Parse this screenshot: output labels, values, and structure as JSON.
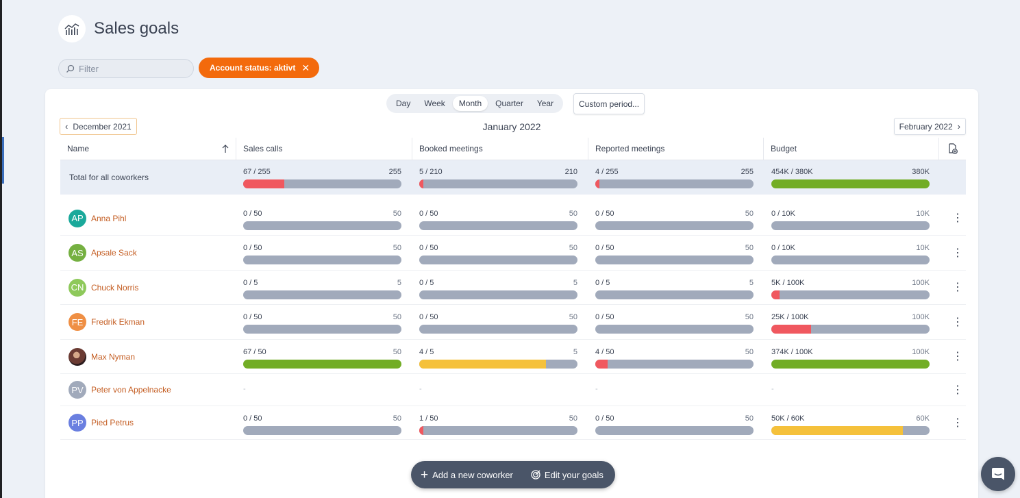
{
  "app": {
    "title": "Sales goals"
  },
  "filter": {
    "placeholder": "Filter"
  },
  "active_filter": {
    "label": "Account status: aktivt"
  },
  "periods": [
    "Day",
    "Week",
    "Month",
    "Quarter",
    "Year"
  ],
  "active_period": "Month",
  "custom_period": "Custom period...",
  "navigation": {
    "prev": "December 2021",
    "current": "January 2022",
    "next": "February 2022"
  },
  "columns": {
    "name": "Name",
    "sales_calls": "Sales calls",
    "booked_meetings": "Booked meetings",
    "reported_meetings": "Reported meetings",
    "budget": "Budget"
  },
  "colors": {
    "red": "#f0585f",
    "green": "#72ad25",
    "yellow": "#f5c13b",
    "track": "#a1aabb",
    "accent": "#f36a0c"
  },
  "total": {
    "label": "Total for all coworkers",
    "metrics": [
      {
        "value": "67 / 255",
        "target": "255",
        "progress": 0.26,
        "color": "red"
      },
      {
        "value": "5 / 210",
        "target": "210",
        "progress": 0.025,
        "color": "red"
      },
      {
        "value": "4 / 255",
        "target": "255",
        "progress": 0.016,
        "color": "red"
      },
      {
        "value": "454K / 380K",
        "target": "380K",
        "progress": 1.0,
        "color": "green"
      }
    ]
  },
  "coworkers": [
    {
      "initials": "AP",
      "name": "Anna Pihl",
      "avatar_color": "#1aa99b",
      "metrics": [
        {
          "value": "0 / 50",
          "target": "50",
          "progress": 0,
          "color": "red"
        },
        {
          "value": "0 / 50",
          "target": "50",
          "progress": 0,
          "color": "red"
        },
        {
          "value": "0 / 50",
          "target": "50",
          "progress": 0,
          "color": "red"
        },
        {
          "value": "0 / 10K",
          "target": "10K",
          "progress": 0,
          "color": "red"
        }
      ]
    },
    {
      "initials": "AS",
      "name": "Apsale Sack",
      "avatar_color": "#75b041",
      "metrics": [
        {
          "value": "0 / 50",
          "target": "50",
          "progress": 0,
          "color": "red"
        },
        {
          "value": "0 / 50",
          "target": "50",
          "progress": 0,
          "color": "red"
        },
        {
          "value": "0 / 50",
          "target": "50",
          "progress": 0,
          "color": "red"
        },
        {
          "value": "0 / 10K",
          "target": "10K",
          "progress": 0,
          "color": "red"
        }
      ]
    },
    {
      "initials": "CN",
      "name": "Chuck Norris",
      "avatar_color": "#8ec95b",
      "metrics": [
        {
          "value": "0 / 5",
          "target": "5",
          "progress": 0,
          "color": "red"
        },
        {
          "value": "0 / 5",
          "target": "5",
          "progress": 0,
          "color": "red"
        },
        {
          "value": "0 / 5",
          "target": "5",
          "progress": 0,
          "color": "red"
        },
        {
          "value": "5K / 100K",
          "target": "100K",
          "progress": 0.05,
          "color": "red"
        }
      ]
    },
    {
      "initials": "FE",
      "name": "Fredrik Ekman",
      "avatar_color": "#ef8f44",
      "metrics": [
        {
          "value": "0 / 50",
          "target": "50",
          "progress": 0,
          "color": "red"
        },
        {
          "value": "0 / 50",
          "target": "50",
          "progress": 0,
          "color": "red"
        },
        {
          "value": "0 / 50",
          "target": "50",
          "progress": 0,
          "color": "red"
        },
        {
          "value": "25K / 100K",
          "target": "100K",
          "progress": 0.25,
          "color": "red"
        }
      ]
    },
    {
      "initials": "",
      "name": "Max Nyman",
      "avatar_color": "#5a3a3a",
      "photo": true,
      "metrics": [
        {
          "value": "67 / 50",
          "target": "50",
          "progress": 1.0,
          "color": "green"
        },
        {
          "value": "4 / 5",
          "target": "5",
          "progress": 0.8,
          "color": "yellow"
        },
        {
          "value": "4 / 50",
          "target": "50",
          "progress": 0.08,
          "color": "red"
        },
        {
          "value": "374K / 100K",
          "target": "100K",
          "progress": 1.0,
          "color": "green"
        }
      ]
    },
    {
      "initials": "PV",
      "name": "Peter von Appelnacke",
      "avatar_color": "#a1aabb",
      "empty": true,
      "metrics": []
    },
    {
      "initials": "PP",
      "name": "Pied Petrus",
      "avatar_color": "#6a7fe0",
      "metrics": [
        {
          "value": "0 / 50",
          "target": "50",
          "progress": 0,
          "color": "red"
        },
        {
          "value": "1 / 50",
          "target": "50",
          "progress": 0.02,
          "color": "red"
        },
        {
          "value": "0 / 50",
          "target": "50",
          "progress": 0,
          "color": "red"
        },
        {
          "value": "50K / 60K",
          "target": "60K",
          "progress": 0.83,
          "color": "yellow"
        }
      ]
    }
  ],
  "empty_placeholder": "-",
  "actions": {
    "add_coworker": "Add a new coworker",
    "edit_goals": "Edit your goals"
  }
}
